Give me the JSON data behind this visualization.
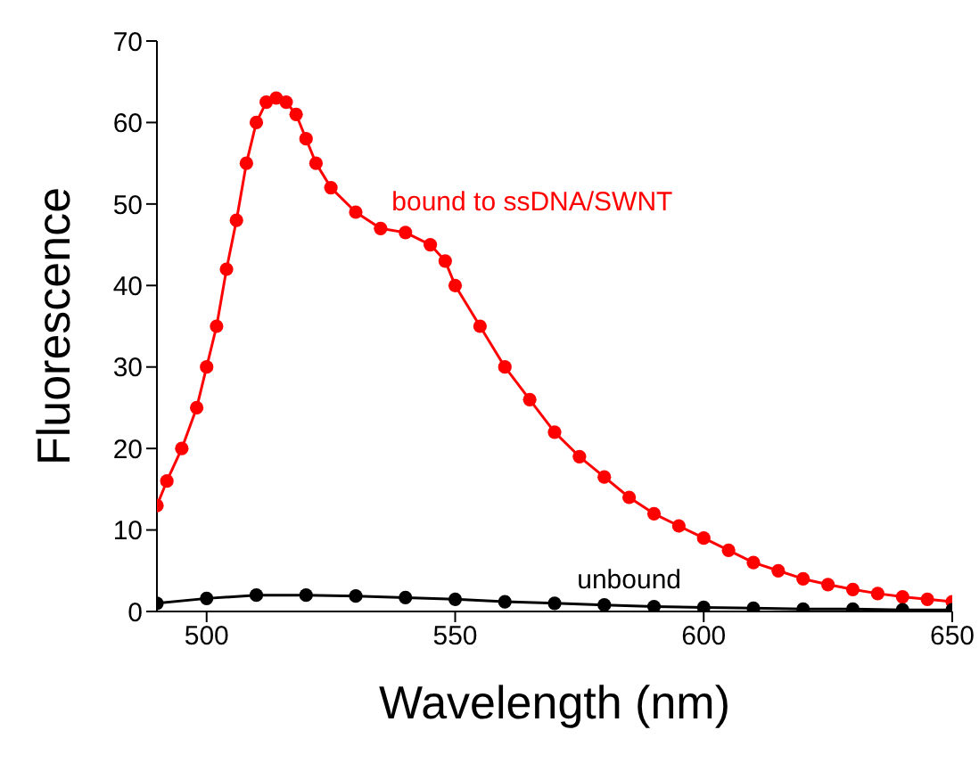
{
  "chart_data": {
    "type": "line",
    "xlabel": "Wavelength (nm)",
    "ylabel": "Fluorescence",
    "xlim": [
      490,
      650
    ],
    "xticks": [
      500,
      550,
      600,
      650
    ],
    "ylim": [
      0,
      70
    ],
    "yticks": [
      0,
      10,
      20,
      30,
      40,
      50,
      60,
      70
    ],
    "marker": "circle",
    "legend": false,
    "grid": false,
    "x": [
      490,
      492,
      495,
      498,
      500,
      502,
      504,
      506,
      508,
      510,
      512,
      514,
      516,
      518,
      520,
      522,
      525,
      530,
      535,
      540,
      545,
      548,
      550,
      555,
      560,
      565,
      570,
      575,
      580,
      585,
      590,
      595,
      600,
      605,
      610,
      615,
      620,
      625,
      630,
      635,
      640,
      645,
      650
    ],
    "series": [
      {
        "color": "#ff0000",
        "values": [
          13,
          16,
          20,
          25,
          30,
          35,
          42,
          48,
          55,
          60,
          62.5,
          63,
          62.5,
          61,
          58,
          55,
          52,
          49,
          47,
          46.5,
          45,
          43,
          40,
          35,
          30,
          26,
          22,
          19,
          16.5,
          14,
          12,
          10.5,
          9,
          7.5,
          6,
          5,
          4,
          3.3,
          2.7,
          2.2,
          1.8,
          1.5,
          1.2
        ]
      },
      {
        "color": "#000000",
        "x": [
          490,
          500,
          510,
          520,
          530,
          540,
          550,
          560,
          570,
          580,
          590,
          600,
          610,
          620,
          630,
          640,
          650
        ],
        "values": [
          1,
          1.6,
          2,
          2,
          1.9,
          1.7,
          1.5,
          1.2,
          1,
          0.8,
          0.6,
          0.5,
          0.4,
          0.3,
          0.3,
          0.2,
          0.2
        ]
      }
    ],
    "annotations": [
      {
        "text": "bound to ssDNA/SWNT",
        "x": 535,
        "y": 47
      },
      {
        "text": "unbound",
        "x": 585,
        "y": 0.7
      }
    ]
  }
}
